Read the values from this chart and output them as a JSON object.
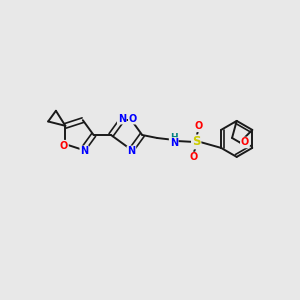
{
  "background_color": "#e8e8e8",
  "bond_color": "#1a1a1a",
  "N_color": "#0000ff",
  "O_red": "#ff0000",
  "O_blue": "#0000ff",
  "S_color": "#cccc00",
  "NH_color": "#008080",
  "figsize": [
    3.0,
    3.0
  ],
  "dpi": 100,
  "xlim": [
    0,
    10
  ],
  "ylim": [
    0,
    10
  ]
}
